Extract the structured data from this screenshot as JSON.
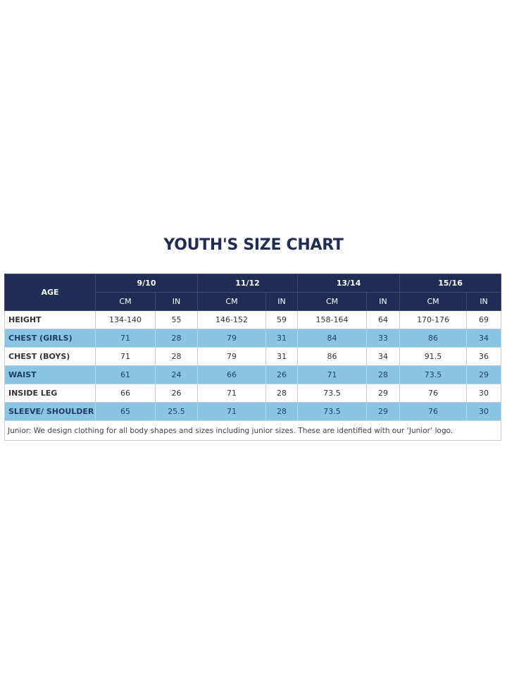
{
  "title": "YOUTH'S SIZE CHART",
  "table": {
    "corner": "AGE",
    "groups": [
      "9/10",
      "11/12",
      "13/14",
      "15/16"
    ],
    "units": [
      "CM",
      "IN",
      "CM",
      "IN",
      "CM",
      "IN",
      "CM",
      "IN"
    ],
    "rows": [
      {
        "label": "HEIGHT",
        "values": [
          "134-140",
          55,
          "146-152",
          59,
          "158-164",
          64,
          "170-176",
          69
        ]
      },
      {
        "label": "CHEST (GIRLS)",
        "values": [
          71,
          28,
          79,
          31,
          84,
          33,
          86,
          34
        ]
      },
      {
        "label": "CHEST (BOYS)",
        "values": [
          71,
          28,
          79,
          31,
          86,
          34,
          91.5,
          36
        ]
      },
      {
        "label": "WAIST",
        "values": [
          61,
          24,
          66,
          26,
          71,
          28,
          73.5,
          29
        ]
      },
      {
        "label": "INSIDE LEG",
        "values": [
          66,
          26,
          71,
          28,
          73.5,
          29,
          76,
          30
        ]
      },
      {
        "label": "SLEEVE/ SHOULDER",
        "values": [
          65,
          25.5,
          71,
          28,
          73.5,
          29,
          76,
          30
        ]
      }
    ],
    "note": "Junior: We design clothing for all body shapes and sizes including junior sizes. These are identified with our ‘Junior’ logo."
  }
}
